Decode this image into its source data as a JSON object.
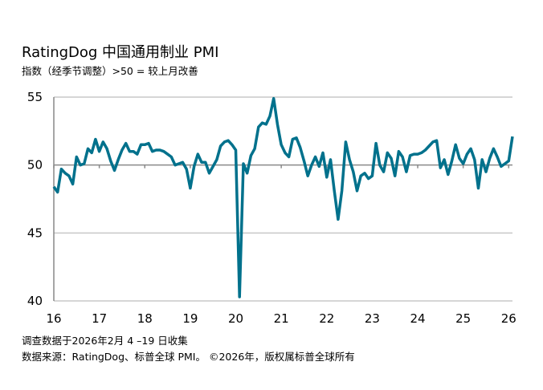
{
  "chart_data": {
    "type": "line",
    "title": "RatingDog 中国通用制业 PMI",
    "subtitle": "指数（经季节调整）>50 = 较上月改善",
    "xlabel": "",
    "ylabel": "",
    "ylim": [
      40,
      55
    ],
    "yticks": [
      "55",
      "50",
      "45",
      "40"
    ],
    "xticks": [
      "16",
      "17",
      "18",
      "19",
      "20",
      "21",
      "22",
      "23",
      "24",
      "25",
      "26"
    ],
    "x_start": "2016-01",
    "x_end": "2026-02",
    "frequency": "monthly",
    "grid": true,
    "line_color": "#00718c",
    "values": [
      48.4,
      48.0,
      49.7,
      49.4,
      49.2,
      48.6,
      50.6,
      50.0,
      50.1,
      51.2,
      50.9,
      51.9,
      51.0,
      51.7,
      51.2,
      50.3,
      49.6,
      50.4,
      51.1,
      51.6,
      51.0,
      51.0,
      50.8,
      51.5,
      51.5,
      51.6,
      51.0,
      51.1,
      51.1,
      51.0,
      50.8,
      50.6,
      50.0,
      50.1,
      50.2,
      49.7,
      48.3,
      49.9,
      50.8,
      50.2,
      50.2,
      49.4,
      49.9,
      50.4,
      51.4,
      51.7,
      51.8,
      51.5,
      51.1,
      40.3,
      50.1,
      49.4,
      50.7,
      51.2,
      52.8,
      53.1,
      53.0,
      53.6,
      54.9,
      53.0,
      51.5,
      50.9,
      50.6,
      51.9,
      52.0,
      51.3,
      50.3,
      49.2,
      50.0,
      50.6,
      49.9,
      50.9,
      49.1,
      50.4,
      48.1,
      46.0,
      48.1,
      51.7,
      50.4,
      49.5,
      48.1,
      49.2,
      49.4,
      49.0,
      49.2,
      51.6,
      50.0,
      49.5,
      50.9,
      50.5,
      49.2,
      51.0,
      50.6,
      49.5,
      50.7,
      50.8,
      50.8,
      50.9,
      51.1,
      51.4,
      51.7,
      51.8,
      49.8,
      50.4,
      49.3,
      50.3,
      51.5,
      50.5,
      50.1,
      50.8,
      51.2,
      50.4,
      48.3,
      50.4,
      49.5,
      50.5,
      51.2,
      50.6,
      49.9,
      50.1,
      50.3,
      52.1
    ]
  },
  "footer": {
    "line1": "调查数据于2026年2月 4 –19 日收集",
    "line2": "数据来源：RatingDog、标普全球 PMI。 ©2026年，版权属标普全球所有"
  }
}
